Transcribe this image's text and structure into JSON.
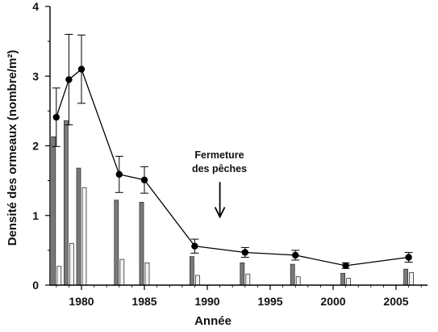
{
  "chart_data": {
    "type": "bar",
    "xlabel": "Année",
    "ylabel": "Densité des ormeaux (nombre/m²)",
    "xlim": [
      1977.5,
      2007.5
    ],
    "ylim": [
      0,
      4
    ],
    "xticks": [
      1980,
      1985,
      1990,
      1995,
      2000,
      2005
    ],
    "yticks": [
      0,
      1,
      2,
      3,
      4
    ],
    "grid": false,
    "legend": "none",
    "annotation": {
      "lines": [
        "Fermeture",
        "des pêches"
      ],
      "x": 1991,
      "arrow_from_y": 1.48,
      "arrow_to_y": 0.98
    },
    "bar_series": [
      {
        "color": "#7a7a7a",
        "x": [
          1978,
          1979,
          1980,
          1983,
          1985,
          1989,
          1993,
          1997,
          2001,
          2006
        ],
        "values": [
          2.13,
          2.36,
          1.68,
          1.22,
          1.19,
          0.41,
          0.32,
          0.3,
          0.17,
          0.23
        ]
      },
      {
        "color": "#f2f2f2",
        "x": [
          1978,
          1979,
          1980,
          1983,
          1985,
          1989,
          1993,
          1997,
          2001,
          2006
        ],
        "values": [
          0.27,
          0.6,
          1.4,
          0.37,
          0.32,
          0.14,
          0.16,
          0.12,
          0.1,
          0.18
        ]
      }
    ],
    "line_series": {
      "color": "#000000",
      "x": [
        1978,
        1979,
        1980,
        1983,
        1985,
        1989,
        1993,
        1997,
        2001,
        2006
      ],
      "values": [
        2.41,
        2.95,
        3.1,
        1.59,
        1.51,
        0.56,
        0.47,
        0.43,
        0.28,
        0.4
      ],
      "error": [
        0.42,
        0.65,
        0.49,
        0.26,
        0.19,
        0.1,
        0.07,
        0.07,
        0.04,
        0.07
      ]
    }
  }
}
